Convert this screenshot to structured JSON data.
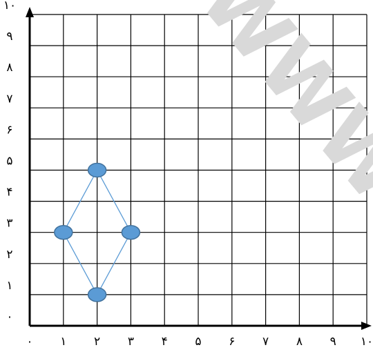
{
  "watermark": {
    "text": "WWW",
    "color": "#d9d9d9"
  },
  "colors": {
    "grid": "#000000",
    "axis": "#000000",
    "line": "#5b9bd5",
    "marker_fill": "#5b9bd5",
    "marker_stroke": "#41719c"
  },
  "chart_data": {
    "type": "scatter",
    "title": "",
    "xlabel": "",
    "ylabel": "",
    "xlim": [
      0,
      10
    ],
    "ylim": [
      0,
      10
    ],
    "grid": true,
    "x_ticks": [
      {
        "value": 0,
        "label": "۰"
      },
      {
        "value": 1,
        "label": "۱"
      },
      {
        "value": 2,
        "label": "۲"
      },
      {
        "value": 3,
        "label": "۳"
      },
      {
        "value": 4,
        "label": "۴"
      },
      {
        "value": 5,
        "label": "۵"
      },
      {
        "value": 6,
        "label": "۶"
      },
      {
        "value": 7,
        "label": "۷"
      },
      {
        "value": 8,
        "label": "۸"
      },
      {
        "value": 9,
        "label": "۹"
      },
      {
        "value": 10,
        "label": "۱۰"
      }
    ],
    "y_ticks": [
      {
        "value": 0,
        "label": "۰"
      },
      {
        "value": 1,
        "label": "۱"
      },
      {
        "value": 2,
        "label": "۲"
      },
      {
        "value": 3,
        "label": "۳"
      },
      {
        "value": 4,
        "label": "۴"
      },
      {
        "value": 5,
        "label": "۵"
      },
      {
        "value": 6,
        "label": "۶"
      },
      {
        "value": 7,
        "label": "۷"
      },
      {
        "value": 8,
        "label": "۸"
      },
      {
        "value": 9,
        "label": "۹"
      },
      {
        "value": 10,
        "label": "۱۰"
      }
    ],
    "series": [
      {
        "points": [
          [
            2,
            5
          ],
          [
            1,
            3
          ],
          [
            2,
            1
          ],
          [
            3,
            3
          ]
        ],
        "closed": true
      }
    ]
  }
}
